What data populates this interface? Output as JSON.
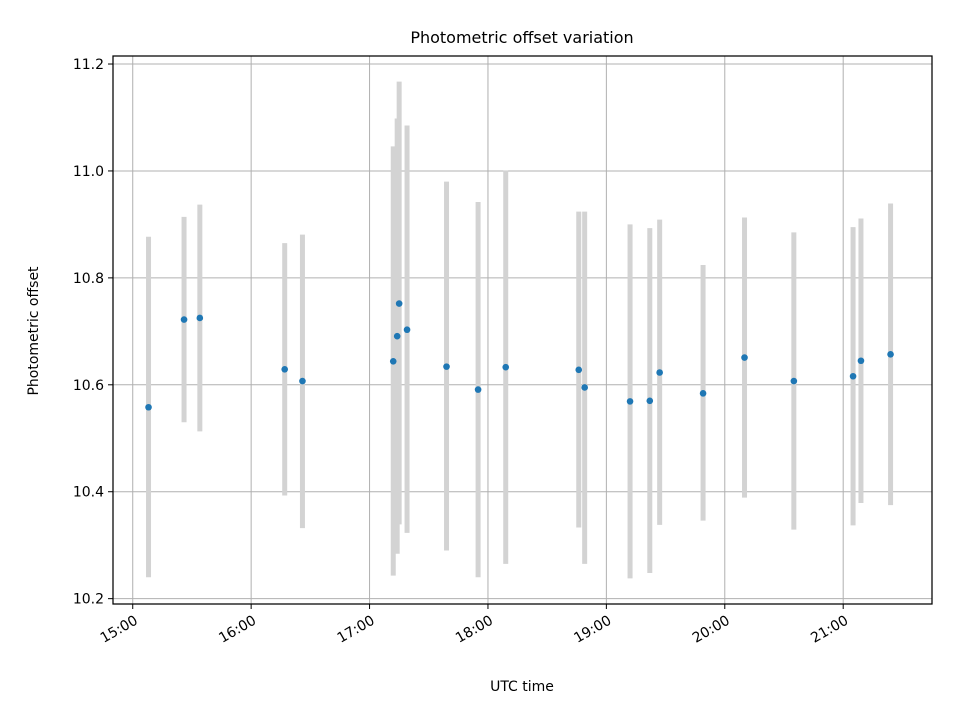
{
  "chart_data": {
    "type": "scatter",
    "title": "Photometric offset variation",
    "xlabel": "UTC time",
    "ylabel": "Photometric offset",
    "grid": true,
    "x_ticks": [
      "15:00",
      "16:00",
      "17:00",
      "18:00",
      "19:00",
      "20:00",
      "21:00"
    ],
    "y_ticks": [
      "10.2",
      "10.4",
      "10.6",
      "10.8",
      "11.0",
      "11.2"
    ],
    "xlim": [
      "14:50",
      "21:45"
    ],
    "ylim": [
      10.19,
      11.215
    ],
    "errorbar_color": "#d3d3d3",
    "marker_color": "#1f77b4",
    "points": [
      {
        "time": "15:08",
        "y": 10.558,
        "low": 10.24,
        "high": 10.877
      },
      {
        "time": "15:26",
        "y": 10.722,
        "low": 10.53,
        "high": 10.914
      },
      {
        "time": "15:34",
        "y": 10.725,
        "low": 10.513,
        "high": 10.937
      },
      {
        "time": "16:17",
        "y": 10.629,
        "low": 10.393,
        "high": 10.865
      },
      {
        "time": "16:26",
        "y": 10.607,
        "low": 10.332,
        "high": 10.881
      },
      {
        "time": "17:12",
        "y": 10.644,
        "low": 10.243,
        "high": 11.046
      },
      {
        "time": "17:14",
        "y": 10.691,
        "low": 10.284,
        "high": 11.098
      },
      {
        "time": "17:15",
        "y": 10.752,
        "low": 10.339,
        "high": 11.167
      },
      {
        "time": "17:19",
        "y": 10.703,
        "low": 10.323,
        "high": 11.085
      },
      {
        "time": "17:39",
        "y": 10.634,
        "low": 10.29,
        "high": 10.98
      },
      {
        "time": "17:55",
        "y": 10.591,
        "low": 10.24,
        "high": 10.942
      },
      {
        "time": "18:09",
        "y": 10.633,
        "low": 10.265,
        "high": 11.001
      },
      {
        "time": "18:46",
        "y": 10.628,
        "low": 10.333,
        "high": 10.924
      },
      {
        "time": "18:49",
        "y": 10.595,
        "low": 10.265,
        "high": 10.924
      },
      {
        "time": "19:12",
        "y": 10.569,
        "low": 10.238,
        "high": 10.9
      },
      {
        "time": "19:22",
        "y": 10.57,
        "low": 10.248,
        "high": 10.893
      },
      {
        "time": "19:27",
        "y": 10.623,
        "low": 10.338,
        "high": 10.909
      },
      {
        "time": "19:49",
        "y": 10.584,
        "low": 10.346,
        "high": 10.824
      },
      {
        "time": "20:10",
        "y": 10.651,
        "low": 10.389,
        "high": 10.913
      },
      {
        "time": "20:35",
        "y": 10.607,
        "low": 10.329,
        "high": 10.885
      },
      {
        "time": "21:05",
        "y": 10.616,
        "low": 10.337,
        "high": 10.895
      },
      {
        "time": "21:09",
        "y": 10.645,
        "low": 10.379,
        "high": 10.911
      },
      {
        "time": "21:24",
        "y": 10.657,
        "low": 10.375,
        "high": 10.939
      }
    ]
  }
}
